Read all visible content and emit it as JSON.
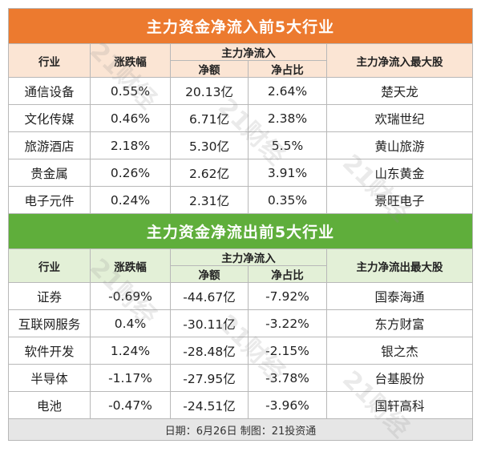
{
  "inflow": {
    "title": "主力资金净流入前5大行业",
    "headers": {
      "industry": "行业",
      "change": "涨跌幅",
      "main_net": "主力净流入",
      "net_amount": "净额",
      "net_ratio": "净占比",
      "top_stock": "主力净流入最大股"
    },
    "rows": [
      {
        "industry": "通信设备",
        "change": "0.55%",
        "net": "20.13亿",
        "ratio": "2.64%",
        "stock": "楚天龙"
      },
      {
        "industry": "文化传媒",
        "change": "0.46%",
        "net": "6.71亿",
        "ratio": "2.38%",
        "stock": "欢瑞世纪"
      },
      {
        "industry": "旅游酒店",
        "change": "2.18%",
        "net": "5.30亿",
        "ratio": "5.5%",
        "stock": "黄山旅游"
      },
      {
        "industry": "贵金属",
        "change": "0.26%",
        "net": "2.62亿",
        "ratio": "3.91%",
        "stock": "山东黄金"
      },
      {
        "industry": "电子元件",
        "change": "0.24%",
        "net": "2.31亿",
        "ratio": "0.35%",
        "stock": "景旺电子"
      }
    ]
  },
  "outflow": {
    "title": "主力资金净流出前5大行业",
    "headers": {
      "industry": "行业",
      "change": "涨跌幅",
      "main_net": "主力净流入",
      "net_amount": "净额",
      "net_ratio": "净占比",
      "top_stock": "主力净流出最大股"
    },
    "rows": [
      {
        "industry": "证券",
        "change": "-0.69%",
        "net": "-44.67亿",
        "ratio": "-7.92%",
        "stock": "国泰海通"
      },
      {
        "industry": "互联网服务",
        "change": "0.4%",
        "net": "-30.11亿",
        "ratio": "-3.22%",
        "stock": "东方财富"
      },
      {
        "industry": "软件开发",
        "change": "1.24%",
        "net": "-28.48亿",
        "ratio": "-2.15%",
        "stock": "银之杰"
      },
      {
        "industry": "半导体",
        "change": "-1.17%",
        "net": "-27.95亿",
        "ratio": "-3.78%",
        "stock": "台基股份"
      },
      {
        "industry": "电池",
        "change": "-0.47%",
        "net": "-24.51亿",
        "ratio": "-3.96%",
        "stock": "国轩高科"
      }
    ]
  },
  "footer": "日期：6月26日 制图：21投资通",
  "watermark": "21财经",
  "colors": {
    "inflow_title_bg": "#ec7a2f",
    "inflow_header_bg": "#fbe5d4",
    "outflow_title_bg": "#5fae3b",
    "outflow_header_bg": "#e3f0d7",
    "footer_bg": "#e6e6e6"
  }
}
